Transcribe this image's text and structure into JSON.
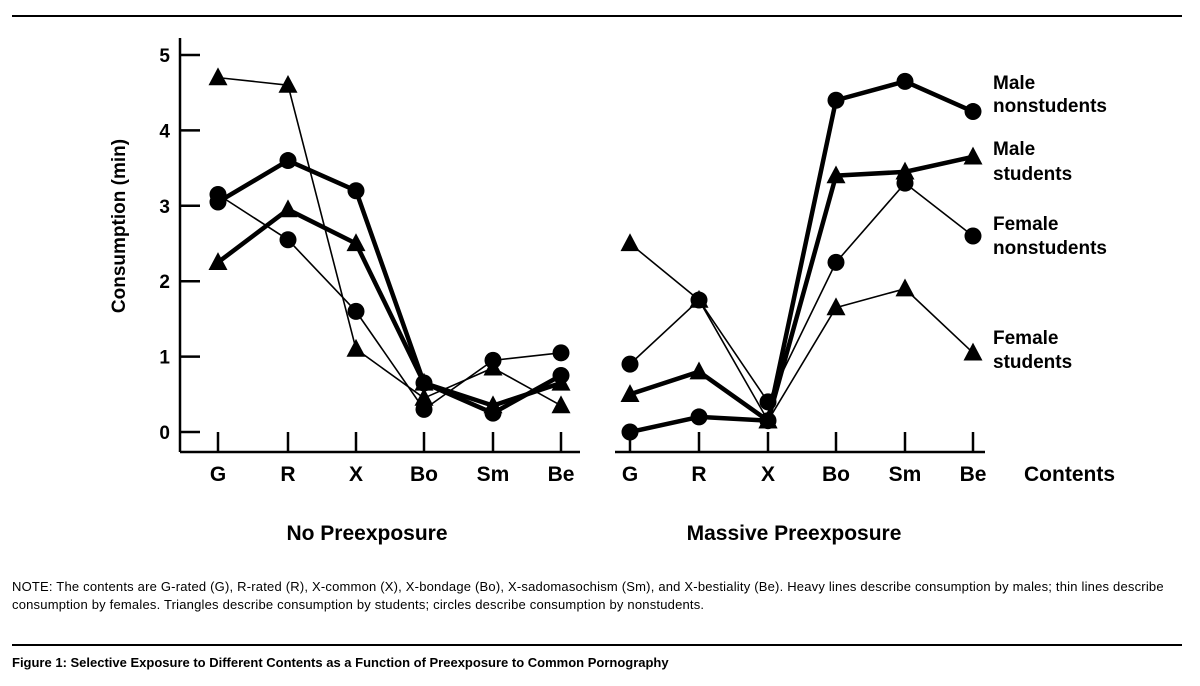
{
  "chart_data": {
    "type": "line",
    "ylabel": "Consumption (min)",
    "xlabel": "Contents",
    "ylim": [
      0,
      5
    ],
    "yticks": [
      "0",
      "1",
      "2",
      "3",
      "4",
      "5"
    ],
    "categories": [
      "G",
      "R",
      "X",
      "Bo",
      "Sm",
      "Be"
    ],
    "panels": [
      {
        "title": "No Preexposure",
        "series": [
          {
            "name": "Male nonstudents",
            "weight": "heavy",
            "marker": "circle",
            "values": [
              3.05,
              3.6,
              3.2,
              0.65,
              0.25,
              0.75
            ]
          },
          {
            "name": "Male students",
            "weight": "heavy",
            "marker": "triangle",
            "values": [
              2.25,
              2.95,
              2.5,
              0.65,
              0.35,
              0.65
            ]
          },
          {
            "name": "Female nonstudents",
            "weight": "thin",
            "marker": "circle",
            "values": [
              3.15,
              2.55,
              1.6,
              0.3,
              0.95,
              1.05
            ]
          },
          {
            "name": "Female students",
            "weight": "thin",
            "marker": "triangle",
            "values": [
              4.7,
              4.6,
              1.1,
              0.45,
              0.85,
              0.35
            ]
          }
        ]
      },
      {
        "title": "Massive Preexposure",
        "series": [
          {
            "name": "Male nonstudents",
            "weight": "heavy",
            "marker": "circle",
            "values": [
              0.0,
              0.2,
              0.15,
              4.4,
              4.65,
              4.25
            ]
          },
          {
            "name": "Male students",
            "weight": "heavy",
            "marker": "triangle",
            "values": [
              0.5,
              0.8,
              0.15,
              3.4,
              3.45,
              3.65
            ]
          },
          {
            "name": "Female nonstudents",
            "weight": "thin",
            "marker": "circle",
            "values": [
              0.9,
              1.75,
              0.4,
              2.25,
              3.3,
              2.6
            ]
          },
          {
            "name": "Female students",
            "weight": "thin",
            "marker": "triangle",
            "values": [
              2.5,
              1.75,
              0.15,
              1.65,
              1.9,
              1.05
            ]
          }
        ]
      }
    ],
    "legend": [
      {
        "line1": "Male",
        "line2": "nonstudents"
      },
      {
        "line1": "Male",
        "line2": "students"
      },
      {
        "line1": "Female",
        "line2": "nonstudents"
      },
      {
        "line1": "Female",
        "line2": "students"
      }
    ]
  },
  "note": "NOTE: The contents are G-rated (G), R-rated (R), X-common (X), X-bondage (Bo), X-sadomasochism (Sm), and X-bestiality (Be). Heavy lines describe consumption by males; thin lines describe consumption by females. Triangles describe consumption by students; circles describe consumption by nonstudents.",
  "caption": "Figure 1: Selective Exposure to Different Contents as a Function of Preexposure to Common Pornography"
}
